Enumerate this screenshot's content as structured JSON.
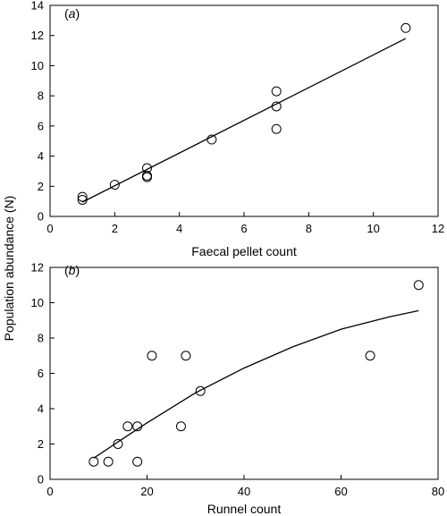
{
  "figure": {
    "shared_ylabel": "Population abundance (N)"
  },
  "chart_data": [
    {
      "type": "scatter",
      "panel_label_open": "(",
      "panel_label_letter": "a",
      "panel_label_close": ")",
      "xlabel": "Faecal pellet count",
      "ylabel": "Population abundance (N)",
      "xlim": [
        0,
        12
      ],
      "ylim": [
        0,
        14
      ],
      "xticks": [
        0,
        2,
        4,
        6,
        8,
        10,
        12
      ],
      "yticks": [
        0,
        2,
        4,
        6,
        8,
        10,
        12,
        14
      ],
      "grid": false,
      "points": [
        {
          "x": 1,
          "y": 1.1
        },
        {
          "x": 1,
          "y": 1.3
        },
        {
          "x": 2,
          "y": 2.1
        },
        {
          "x": 3,
          "y": 2.6
        },
        {
          "x": 3,
          "y": 2.7
        },
        {
          "x": 3,
          "y": 3.2
        },
        {
          "x": 5,
          "y": 5.1
        },
        {
          "x": 7,
          "y": 5.8
        },
        {
          "x": 7,
          "y": 7.3
        },
        {
          "x": 7,
          "y": 8.3
        },
        {
          "x": 11,
          "y": 12.5
        }
      ],
      "fit": {
        "kind": "linear",
        "points": [
          [
            1,
            0.95
          ],
          [
            11,
            11.8
          ]
        ]
      }
    },
    {
      "type": "scatter",
      "panel_label_open": "(",
      "panel_label_letter": "b",
      "panel_label_close": ")",
      "xlabel": "Runnel count",
      "ylabel": "Population abundance (N)",
      "xlim": [
        0,
        80
      ],
      "ylim": [
        0,
        12
      ],
      "xticks": [
        0,
        20,
        40,
        60,
        80
      ],
      "yticks": [
        0,
        2,
        4,
        6,
        8,
        10,
        12
      ],
      "grid": false,
      "points": [
        {
          "x": 9,
          "y": 1
        },
        {
          "x": 12,
          "y": 1
        },
        {
          "x": 14,
          "y": 2
        },
        {
          "x": 16,
          "y": 3
        },
        {
          "x": 18,
          "y": 1
        },
        {
          "x": 18,
          "y": 3
        },
        {
          "x": 21,
          "y": 7
        },
        {
          "x": 27,
          "y": 3
        },
        {
          "x": 28,
          "y": 7
        },
        {
          "x": 31,
          "y": 5
        },
        {
          "x": 66,
          "y": 7
        },
        {
          "x": 76,
          "y": 11
        }
      ],
      "fit": {
        "kind": "curve",
        "points": [
          [
            9,
            1.2
          ],
          [
            15,
            2.3
          ],
          [
            20,
            3.2
          ],
          [
            30,
            4.9
          ],
          [
            40,
            6.3
          ],
          [
            50,
            7.5
          ],
          [
            60,
            8.5
          ],
          [
            70,
            9.2
          ],
          [
            76,
            9.55
          ]
        ]
      }
    }
  ]
}
